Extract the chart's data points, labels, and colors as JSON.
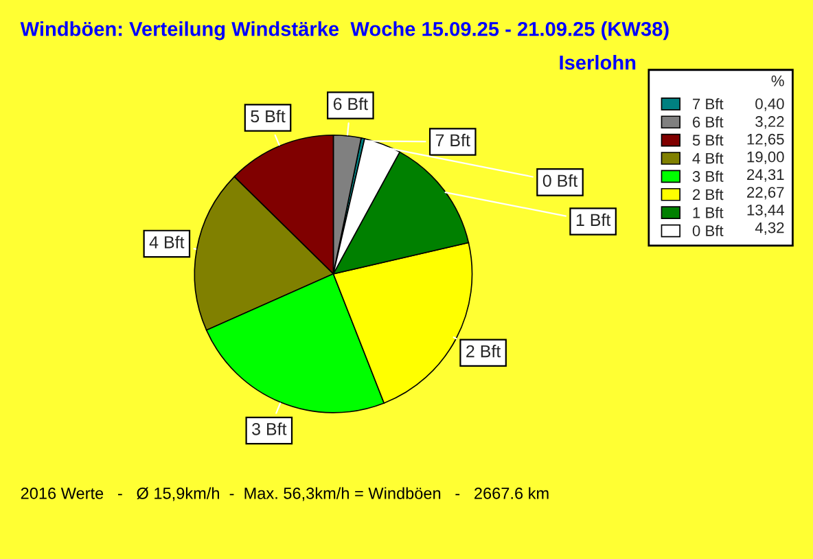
{
  "chart_data": {
    "type": "pie",
    "title": "Windböen: Verteilung Windstärke  Woche 15.09.25 - 21.09.25 (KW38)",
    "subtitle": "Iserlohn",
    "legend_title": "%",
    "legend": "right",
    "categories": [
      "7 Bft",
      "6 Bft",
      "5 Bft",
      "4 Bft",
      "3 Bft",
      "2 Bft",
      "1 Bft",
      "0 Bft"
    ],
    "values": [
      0.4,
      3.22,
      12.65,
      19.0,
      24.31,
      22.67,
      13.44,
      4.32
    ],
    "value_labels": [
      "0,40",
      "3,22",
      "12,65",
      "19,00",
      "24,31",
      "22,67",
      "13,44",
      "4,32"
    ],
    "colors": [
      "#008080",
      "#808080",
      "#800000",
      "#808000",
      "#00ff00",
      "#ffff00",
      "#008000",
      "#ffffff"
    ],
    "annotations": [
      "2016 Werte   -   Ø 15,9km/h  -  Max. 56,3km/h = Windböen   -   2667.6 km"
    ]
  }
}
